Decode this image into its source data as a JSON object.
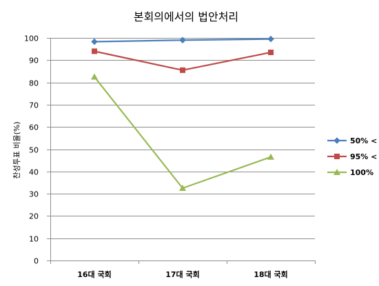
{
  "chart_data": {
    "type": "line",
    "title": "본회의에서의 법안처리",
    "xlabel": "",
    "ylabel": "찬성투표 비율(%)",
    "categories": [
      "16대 국회",
      "17대 국회",
      "18대 국회"
    ],
    "ylim": [
      0,
      100
    ],
    "yticks": [
      0,
      10,
      20,
      30,
      40,
      50,
      60,
      70,
      80,
      90,
      100
    ],
    "grid": true,
    "legend_position": "right",
    "series": [
      {
        "name": "50% <",
        "values": [
          98.3,
          99.0,
          99.5
        ],
        "color": "#4a7ebb",
        "marker": "diamond"
      },
      {
        "name": "95% <",
        "values": [
          94.0,
          85.5,
          93.5
        ],
        "color": "#be4b48",
        "marker": "square"
      },
      {
        "name": "100%",
        "values": [
          82.5,
          32.5,
          46.5
        ],
        "color": "#98b954",
        "marker": "triangle"
      }
    ]
  }
}
